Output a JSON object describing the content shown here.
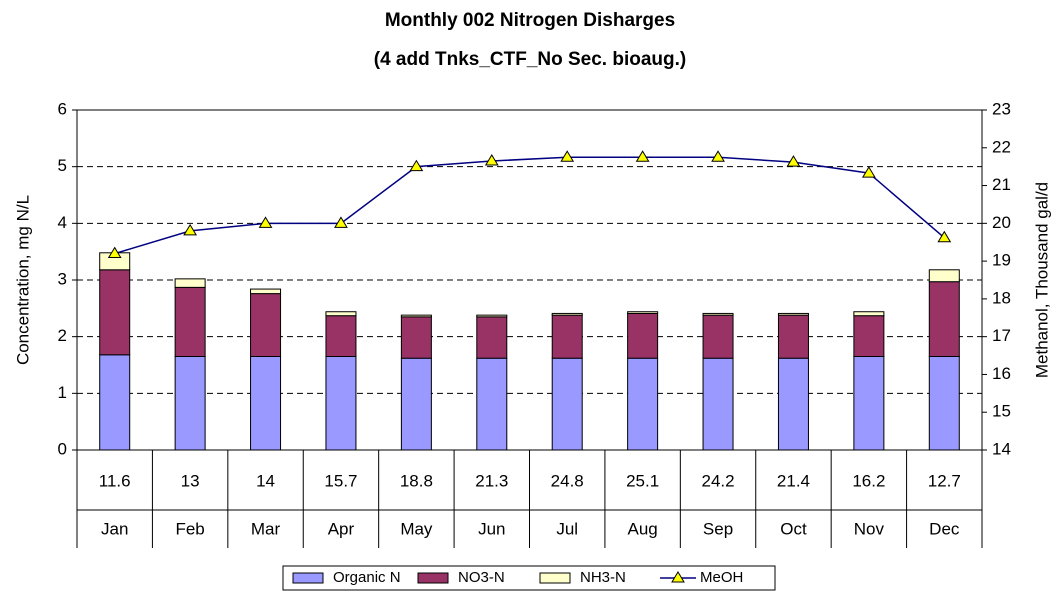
{
  "chart_data": {
    "type": "bar",
    "title": "Monthly 002 Nitrogen Disharges",
    "subtitle": "(4 add Tnks_CTF_No Sec. bioaug.)",
    "y_label": "Concentration, mg N/L",
    "y2_label": "Methanol, Thousand gal/d",
    "categories": [
      "Jan",
      "Feb",
      "Mar",
      "Apr",
      "May",
      "Jun",
      "Jul",
      "Aug",
      "Sep",
      "Oct",
      "Nov",
      "Dec"
    ],
    "sub_categories": [
      11.6,
      13,
      14,
      15.7,
      18.8,
      21.3,
      24.8,
      25.1,
      24.2,
      21.4,
      16.2,
      12.7
    ],
    "stacked": true,
    "series": [
      {
        "name": "Organic N",
        "color": "#9999ff",
        "values": [
          1.68,
          1.65,
          1.65,
          1.65,
          1.62,
          1.62,
          1.62,
          1.62,
          1.62,
          1.62,
          1.65,
          1.65
        ]
      },
      {
        "name": "NO3-N",
        "color": "#993366",
        "values": [
          1.5,
          1.22,
          1.11,
          0.72,
          0.73,
          0.73,
          0.76,
          0.79,
          0.76,
          0.76,
          0.72,
          1.32
        ]
      },
      {
        "name": "NH3-N",
        "color": "#ffffcc",
        "values": [
          0.3,
          0.15,
          0.08,
          0.07,
          0.03,
          0.03,
          0.03,
          0.03,
          0.03,
          0.03,
          0.07,
          0.21
        ]
      },
      {
        "name": "MeOH",
        "type": "line",
        "axis": "y2",
        "color": "#000080",
        "marker_color": "#ffff00",
        "values": [
          19.2,
          19.8,
          20.0,
          20.0,
          21.5,
          21.65,
          21.75,
          21.75,
          21.75,
          21.62,
          21.33,
          19.62
        ]
      }
    ],
    "ylim": [
      0,
      6
    ],
    "yticks": [
      0,
      1,
      2,
      3,
      4,
      5,
      6
    ],
    "y2lim": [
      14,
      23
    ],
    "y2ticks": [
      14,
      15,
      16,
      17,
      18,
      19,
      20,
      21,
      22,
      23
    ],
    "grid": true,
    "legend": "bottom"
  }
}
